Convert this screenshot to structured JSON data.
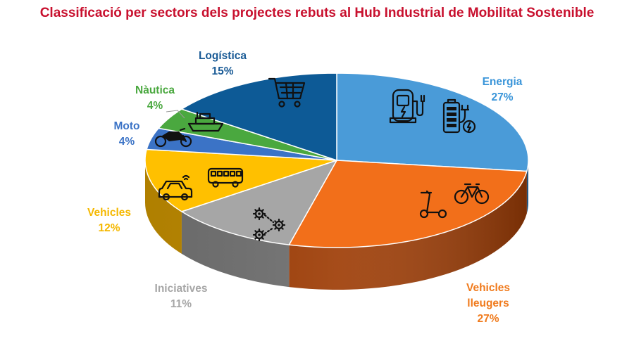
{
  "chart_data": {
    "type": "pie",
    "title": "Classificació per sectors dels projectes rebuts al Hub Industrial de Mobilitat Sostenible",
    "slices": [
      {
        "name": "Energia",
        "value": 27,
        "label_lines": [
          "Energia",
          "27%"
        ],
        "color": "#4a9bd8",
        "side": "#2f6fa6",
        "label_color": "#3a95d9",
        "icon": "charging-station-battery-icon"
      },
      {
        "name": "Vehicles lleugers",
        "value": 27,
        "label_lines": [
          "Vehicles",
          "lleugers",
          "27%"
        ],
        "color": "#f26f1a",
        "side": "#9e3d06",
        "label_color": "#f07a1c",
        "icon": "scooter-bicycle-icon"
      },
      {
        "name": "Iniciatives",
        "value": 11,
        "label_lines": [
          "Iniciatives",
          "11%"
        ],
        "color": "#a6a6a6",
        "side": "#6f6f6f",
        "label_color": "#a6a6a6",
        "icon": "gears-network-icon"
      },
      {
        "name": "Vehicles",
        "value": 12,
        "label_lines": [
          "Vehicles",
          "12%"
        ],
        "color": "#ffc000",
        "side": "#b98600",
        "label_color": "#f5b800",
        "icon": "car-bus-icon"
      },
      {
        "name": "Moto",
        "value": 4,
        "label_lines": [
          "Moto",
          "4%"
        ],
        "color": "#3b73c6",
        "side": "#244f8c",
        "label_color": "#3b73c6",
        "icon": "motorcycle-icon"
      },
      {
        "name": "Nàutica",
        "value": 4,
        "label_lines": [
          "Nàutica",
          "4%"
        ],
        "color": "#4aa83f",
        "side": "#2f6f28",
        "label_color": "#4aa83f",
        "icon": "ship-icon"
      },
      {
        "name": "Logística",
        "value": 15,
        "label_lines": [
          "Logística",
          "15%"
        ],
        "color": "#0d5a96",
        "side": "#083a63",
        "label_color": "#1a5b96",
        "icon": "shopping-cart-icon"
      }
    ]
  }
}
